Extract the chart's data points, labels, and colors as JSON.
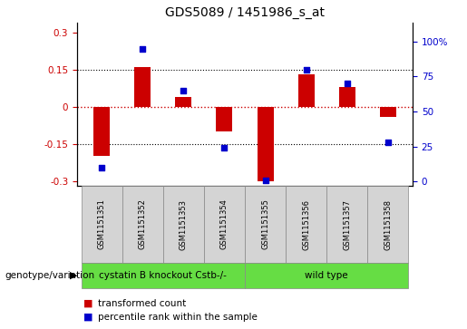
{
  "title": "GDS5089 / 1451986_s_at",
  "samples": [
    "GSM1151351",
    "GSM1151352",
    "GSM1151353",
    "GSM1151354",
    "GSM1151355",
    "GSM1151356",
    "GSM1151357",
    "GSM1151358"
  ],
  "transformed_count": [
    -0.2,
    0.16,
    0.04,
    -0.1,
    -0.3,
    0.13,
    0.08,
    -0.04
  ],
  "percentile_rank": [
    10,
    95,
    65,
    24,
    1,
    80,
    70,
    28
  ],
  "groups": [
    {
      "label": "cystatin B knockout Cstb-/-",
      "start": 0,
      "end": 4
    },
    {
      "label": "wild type",
      "start": 4,
      "end": 8
    }
  ],
  "group_color": "#66dd44",
  "bar_color": "#cc0000",
  "dot_color": "#0000cc",
  "ylim_left": [
    -0.32,
    0.34
  ],
  "ylim_right": [
    -3.21,
    113.6
  ],
  "yticks_left": [
    -0.3,
    -0.15,
    0,
    0.15,
    0.3
  ],
  "yticks_right": [
    0,
    25,
    50,
    75,
    100
  ],
  "hlines_dotted": [
    -0.15,
    0.15
  ],
  "hline_red": 0,
  "plot_bg": "#ffffff",
  "genotype_label": "genotype/variation",
  "legend_transformed": "transformed count",
  "legend_percentile": "percentile rank within the sample",
  "bar_width": 0.4
}
